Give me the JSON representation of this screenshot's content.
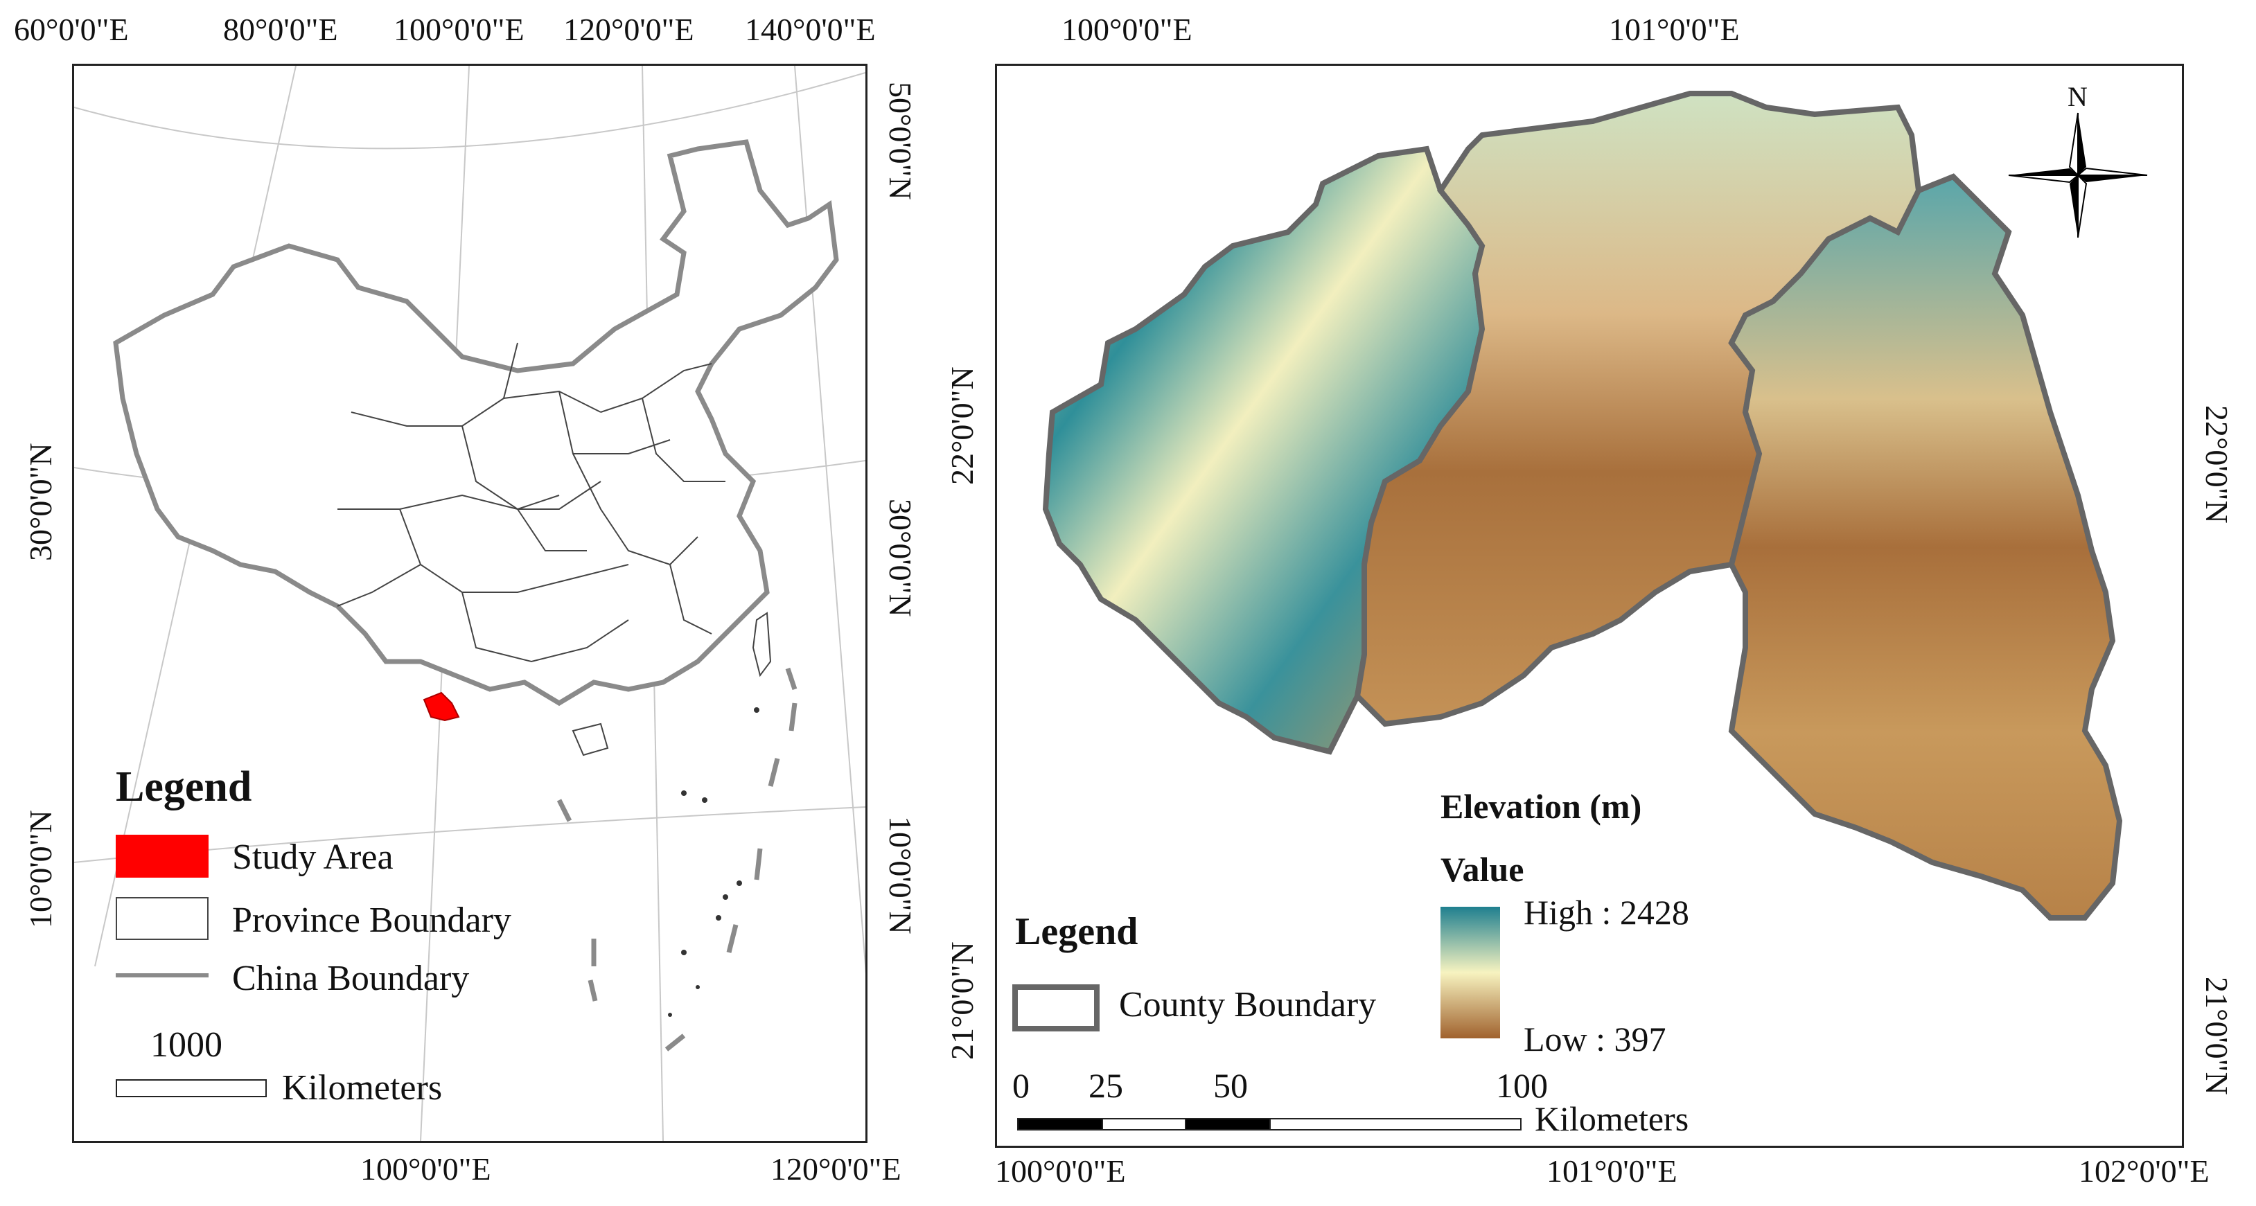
{
  "left_map": {
    "top_labels": [
      "60°0'0\"E",
      "80°0'0\"E",
      "100°0'0\"E",
      "120°0'0\"E",
      "140°0'0\"E"
    ],
    "bottom_labels": [
      "100°0'0\"E",
      "120°0'0\"E"
    ],
    "left_labels": [
      "30°0'0\"N",
      "10°0'0\"N"
    ],
    "right_labels": [
      "50°0'0\"N",
      "30°0'0\"N",
      "10°0'0\"N"
    ],
    "legend": {
      "title": "Legend",
      "items": [
        "Study Area",
        "Province Boundary",
        "China Boundary"
      ],
      "scale_value": "1000",
      "scale_unit": "Kilometers"
    },
    "colors": {
      "study_area": "#ff0000",
      "china_boundary": "#8a8a8a",
      "province_boundary": "#444444"
    }
  },
  "right_map": {
    "top_labels": [
      "100°0'0\"E",
      "101°0'0\"E"
    ],
    "bottom_labels": [
      "100°0'0\"E",
      "101°0'0\"E",
      "102°0'0\"E"
    ],
    "left_labels": [
      "22°0'0\"N",
      "21°0'0\"N"
    ],
    "right_labels": [
      "22°0'0\"N",
      "21°0'0\"N"
    ],
    "north_arrow": "N",
    "elevation": {
      "title": "Elevation (m)",
      "subtitle": "Value",
      "high": "High : 2428",
      "low": "Low : 397",
      "colors": {
        "high": "#1f7f8f",
        "mid": "#f7f3c0",
        "low": "#a0622e"
      }
    },
    "legend": {
      "title": "Legend",
      "item": "County Boundary"
    },
    "scale": {
      "ticks": [
        "0",
        "25",
        "50",
        "100"
      ],
      "unit": "Kilometers"
    }
  }
}
